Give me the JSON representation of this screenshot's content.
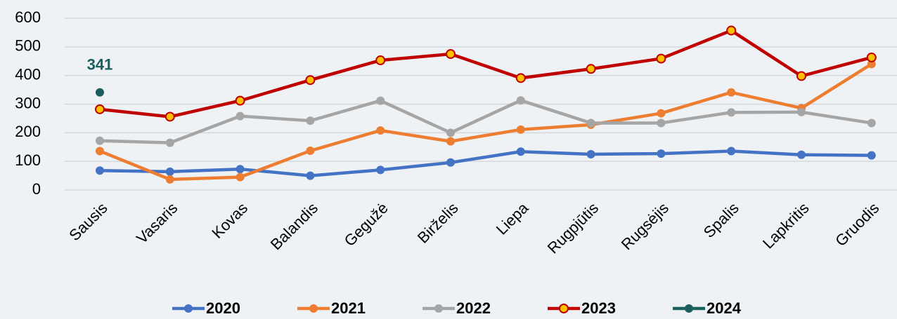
{
  "chart_data": {
    "type": "line",
    "categories": [
      "Sausis",
      "Vasaris",
      "Kovas",
      "Balandis",
      "Gegužė",
      "Birželis",
      "Liepa",
      "Rugpjūtis",
      "Rugsėjis",
      "Spalis",
      "Lapkritis",
      "Gruodis"
    ],
    "series": [
      {
        "name": "2020",
        "color": "#4472c4",
        "values": [
          68,
          64,
          73,
          50,
          70,
          96,
          134,
          125,
          127,
          136,
          123,
          121
        ]
      },
      {
        "name": "2021",
        "color": "#ed7d31",
        "values": [
          136,
          37,
          45,
          137,
          208,
          170,
          211,
          228,
          268,
          341,
          286,
          440
        ]
      },
      {
        "name": "2022",
        "color": "#a5a5a5",
        "values": [
          172,
          165,
          258,
          242,
          312,
          200,
          313,
          234,
          234,
          271,
          272,
          234
        ]
      },
      {
        "name": "2023",
        "color": "#c00000",
        "marker_fill": "#ffc000",
        "values": [
          282,
          256,
          312,
          384,
          453,
          475,
          391,
          423,
          459,
          557,
          398,
          463
        ]
      },
      {
        "name": "2024",
        "color": "#1b5e5e",
        "values": [
          341,
          null,
          null,
          null,
          null,
          null,
          null,
          null,
          null,
          null,
          null,
          null
        ],
        "data_labels": true
      }
    ],
    "ylim": [
      0,
      600
    ],
    "yticks": [
      0,
      100,
      200,
      300,
      400,
      500,
      600
    ],
    "grid": true,
    "legend": "bottom"
  }
}
